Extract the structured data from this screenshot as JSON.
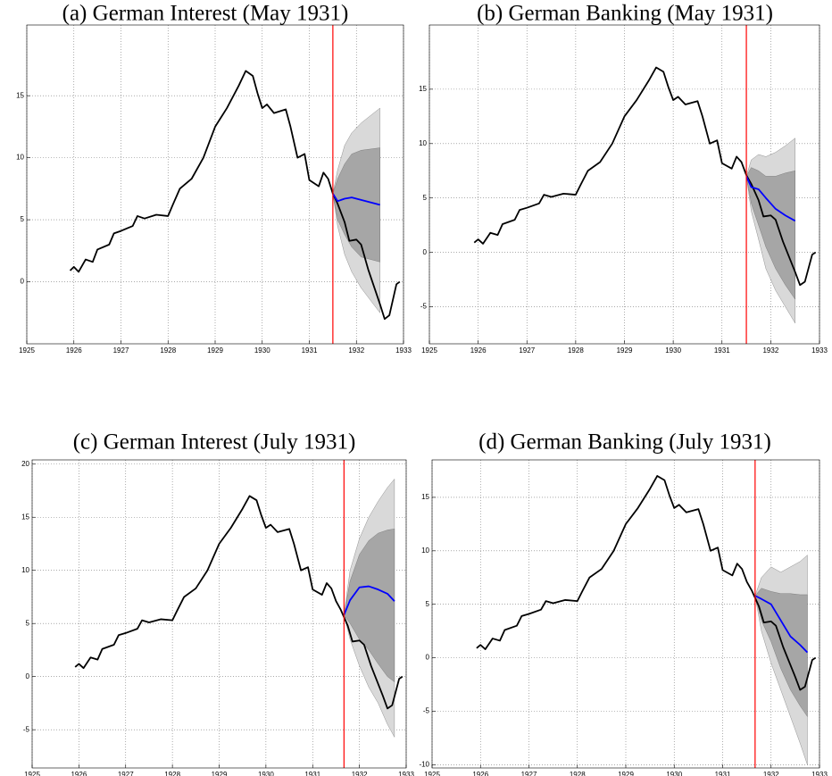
{
  "chart_data": [
    {
      "type": "line",
      "title": "(a)  German Interest (May 1931)",
      "xlim": [
        1925,
        1933
      ],
      "xticks": [
        1925,
        1926,
        1927,
        1928,
        1929,
        1930,
        1931,
        1932,
        1933
      ],
      "ylim": [
        -5,
        20.7
      ],
      "yticks": [
        0,
        5,
        10,
        15
      ],
      "grid": true,
      "vline": {
        "x": 1931.5,
        "color": "#ff0000"
      },
      "bands": [
        {
          "color": "#d9d9d9",
          "x": [
            1931.5,
            1931.6,
            1931.75,
            1931.9,
            1932.1,
            1932.3,
            1932.5
          ],
          "lower": [
            7.1,
            4.5,
            2.2,
            0.8,
            -0.5,
            -1.5,
            -2.5
          ],
          "upper": [
            7.1,
            9.0,
            11.0,
            12.0,
            12.8,
            13.4,
            14.0
          ]
        },
        {
          "color": "#a6a6a6",
          "x": [
            1931.5,
            1931.6,
            1931.75,
            1931.9,
            1932.1,
            1932.3,
            1932.5
          ],
          "lower": [
            7.1,
            5.0,
            3.8,
            2.8,
            2.0,
            1.8,
            1.6
          ],
          "upper": [
            7.1,
            8.3,
            9.5,
            10.3,
            10.6,
            10.7,
            10.8
          ]
        }
      ],
      "series": [
        {
          "color": "#000000",
          "x": [
            1925.92,
            1926.0,
            1926.1,
            1926.25,
            1926.4,
            1926.5,
            1926.75,
            1926.85,
            1927.0,
            1927.25,
            1927.35,
            1927.5,
            1927.75,
            1928.0,
            1928.1,
            1928.25,
            1928.5,
            1928.75,
            1929.0,
            1929.25,
            1929.5,
            1929.65,
            1929.8,
            1929.9,
            1930.0,
            1930.1,
            1930.25,
            1930.5,
            1930.6,
            1930.75,
            1930.9,
            1931.0,
            1931.2,
            1931.3,
            1931.4,
            1931.5,
            1931.6,
            1931.75,
            1931.85,
            1932.0,
            1932.1,
            1932.25,
            1932.5,
            1932.6,
            1932.7,
            1932.85,
            1932.92
          ],
          "values": [
            0.9,
            1.2,
            0.8,
            1.8,
            1.6,
            2.6,
            3.0,
            3.9,
            4.1,
            4.5,
            5.3,
            5.1,
            5.4,
            5.3,
            6.2,
            7.5,
            8.3,
            10.0,
            12.5,
            14.0,
            15.8,
            17.0,
            16.6,
            15.2,
            14.0,
            14.3,
            13.6,
            13.9,
            12.5,
            10.0,
            10.3,
            8.2,
            7.7,
            8.8,
            8.3,
            7.1,
            6.3,
            4.8,
            3.3,
            3.4,
            3.0,
            1.0,
            -1.8,
            -3.0,
            -2.7,
            -0.2,
            0.0
          ]
        },
        {
          "color": "#0000ff",
          "x": [
            1931.5,
            1931.6,
            1931.75,
            1931.9,
            1932.1,
            1932.3,
            1932.5
          ],
          "values": [
            7.1,
            6.5,
            6.7,
            6.8,
            6.6,
            6.4,
            6.2
          ]
        }
      ]
    },
    {
      "type": "line",
      "title": "(b)  German Banking (May 1931)",
      "xlim": [
        1925,
        1933
      ],
      "xticks": [
        1925,
        1926,
        1927,
        1928,
        1929,
        1930,
        1931,
        1932,
        1933
      ],
      "ylim": [
        -8.4,
        20.9
      ],
      "yticks": [
        -5,
        0,
        5,
        10,
        15
      ],
      "grid": true,
      "vline": {
        "x": 1931.5,
        "color": "#ff0000"
      },
      "bands": [
        {
          "color": "#d9d9d9",
          "x": [
            1931.5,
            1931.6,
            1931.75,
            1931.9,
            1932.1,
            1932.3,
            1932.5
          ],
          "lower": [
            7,
            3.8,
            1.2,
            -1.5,
            -3.5,
            -5,
            -6.5
          ],
          "upper": [
            7,
            8.5,
            9.0,
            8.8,
            9.2,
            9.8,
            10.5
          ]
        },
        {
          "color": "#a6a6a6",
          "x": [
            1931.5,
            1931.6,
            1931.75,
            1931.9,
            1932.1,
            1932.3,
            1932.5
          ],
          "lower": [
            7,
            4.5,
            2.5,
            0.5,
            -1.5,
            -3,
            -4.3
          ],
          "upper": [
            7,
            7.8,
            7.5,
            7.0,
            7.0,
            7.3,
            7.5
          ]
        }
      ],
      "series": [
        {
          "color": "#000000",
          "x": [
            1925.92,
            1926.0,
            1926.1,
            1926.25,
            1926.4,
            1926.5,
            1926.75,
            1926.85,
            1927.0,
            1927.25,
            1927.35,
            1927.5,
            1927.75,
            1928.0,
            1928.1,
            1928.25,
            1928.5,
            1928.75,
            1929.0,
            1929.25,
            1929.5,
            1929.65,
            1929.8,
            1929.9,
            1930.0,
            1930.1,
            1930.25,
            1930.5,
            1930.6,
            1930.75,
            1930.9,
            1931.0,
            1931.2,
            1931.3,
            1931.4,
            1931.5,
            1931.6,
            1931.75,
            1931.85,
            1932.0,
            1932.1,
            1932.25,
            1932.5,
            1932.6,
            1932.7,
            1932.85,
            1932.92
          ],
          "values": [
            0.9,
            1.2,
            0.8,
            1.8,
            1.6,
            2.6,
            3.0,
            3.9,
            4.1,
            4.5,
            5.3,
            5.1,
            5.4,
            5.3,
            6.2,
            7.5,
            8.3,
            10.0,
            12.5,
            14.0,
            15.8,
            17.0,
            16.6,
            15.2,
            14.0,
            14.3,
            13.6,
            13.9,
            12.5,
            10.0,
            10.3,
            8.2,
            7.7,
            8.8,
            8.3,
            7.1,
            6.3,
            4.8,
            3.3,
            3.4,
            3.0,
            1.0,
            -1.8,
            -3.0,
            -2.7,
            -0.2,
            0.0
          ]
        },
        {
          "color": "#0000ff",
          "x": [
            1931.5,
            1931.6,
            1931.75,
            1931.9,
            1932.1,
            1932.3,
            1932.5
          ],
          "values": [
            7.0,
            6.0,
            5.8,
            5.0,
            4.0,
            3.4,
            2.9
          ]
        }
      ]
    },
    {
      "type": "line",
      "title": "(c)  German Interest (July 1931)",
      "xlim": [
        1925,
        1933
      ],
      "xticks": [
        1925,
        1926,
        1927,
        1928,
        1929,
        1930,
        1931,
        1932,
        1933
      ],
      "ylim": [
        -8.6,
        20.4
      ],
      "yticks": [
        -5,
        0,
        5,
        10,
        15,
        20
      ],
      "grid": true,
      "vline": {
        "x": 1931.67,
        "color": "#ff0000"
      },
      "bands": [
        {
          "color": "#d9d9d9",
          "x": [
            1931.67,
            1931.8,
            1932.0,
            1932.2,
            1932.4,
            1932.6,
            1932.75
          ],
          "lower": [
            5.8,
            3.5,
            1.0,
            -1.0,
            -2.5,
            -4.5,
            -5.7
          ],
          "upper": [
            5.8,
            10,
            13,
            15,
            16.5,
            17.8,
            18.6
          ]
        },
        {
          "color": "#a6a6a6",
          "x": [
            1931.67,
            1931.8,
            1932.0,
            1932.2,
            1932.4,
            1932.6,
            1932.75
          ],
          "lower": [
            5.8,
            5.0,
            3.5,
            2.5,
            1.2,
            0.0,
            -0.5
          ],
          "upper": [
            5.8,
            9.0,
            11.5,
            12.8,
            13.5,
            13.8,
            13.9
          ]
        }
      ],
      "series": [
        {
          "color": "#000000",
          "x": [
            1925.92,
            1926.0,
            1926.1,
            1926.25,
            1926.4,
            1926.5,
            1926.75,
            1926.85,
            1927.0,
            1927.25,
            1927.35,
            1927.5,
            1927.75,
            1928.0,
            1928.1,
            1928.25,
            1928.5,
            1928.75,
            1929.0,
            1929.25,
            1929.5,
            1929.65,
            1929.8,
            1929.9,
            1930.0,
            1930.1,
            1930.25,
            1930.5,
            1930.6,
            1930.75,
            1930.9,
            1931.0,
            1931.2,
            1931.3,
            1931.4,
            1931.5,
            1931.6,
            1931.75,
            1931.85,
            1932.0,
            1932.1,
            1932.25,
            1932.5,
            1932.6,
            1932.7,
            1932.85,
            1932.92
          ],
          "values": [
            0.9,
            1.2,
            0.8,
            1.8,
            1.6,
            2.6,
            3.0,
            3.9,
            4.1,
            4.5,
            5.3,
            5.1,
            5.4,
            5.3,
            6.2,
            7.5,
            8.3,
            10.0,
            12.5,
            14.0,
            15.8,
            17.0,
            16.6,
            15.2,
            14.0,
            14.3,
            13.6,
            13.9,
            12.5,
            10.0,
            10.3,
            8.2,
            7.7,
            8.8,
            8.3,
            7.1,
            6.3,
            4.8,
            3.3,
            3.4,
            3.0,
            1.0,
            -1.8,
            -3.0,
            -2.7,
            -0.2,
            0.0
          ]
        },
        {
          "color": "#0000ff",
          "x": [
            1931.67,
            1931.8,
            1932.0,
            1932.2,
            1932.4,
            1932.6,
            1932.75
          ],
          "values": [
            5.8,
            7.2,
            8.4,
            8.5,
            8.2,
            7.8,
            7.1
          ]
        }
      ]
    },
    {
      "type": "line",
      "title": "(d)  German Banking (July 1931)",
      "xlim": [
        1925,
        1933
      ],
      "xticks": [
        1925,
        1926,
        1927,
        1928,
        1929,
        1930,
        1931,
        1932,
        1933
      ],
      "ylim": [
        -10.3,
        18.5
      ],
      "yticks": [
        -10,
        -5,
        0,
        5,
        10,
        15
      ],
      "grid": true,
      "vline": {
        "x": 1931.67,
        "color": "#ff0000"
      },
      "bands": [
        {
          "color": "#d9d9d9",
          "x": [
            1931.67,
            1931.8,
            1932.0,
            1932.2,
            1932.4,
            1932.6,
            1932.75
          ],
          "lower": [
            5.8,
            2.5,
            -0.5,
            -3,
            -5.5,
            -8,
            -10
          ],
          "upper": [
            5.8,
            7.5,
            8.5,
            8.0,
            8.5,
            9.0,
            9.6
          ]
        },
        {
          "color": "#a6a6a6",
          "x": [
            1931.67,
            1931.8,
            1932.0,
            1932.2,
            1932.4,
            1932.6,
            1932.75
          ],
          "lower": [
            5.8,
            3.5,
            1.5,
            -1.0,
            -3,
            -4.5,
            -5.5
          ],
          "upper": [
            5.8,
            6.5,
            6.2,
            6.0,
            6.0,
            5.9,
            5.9
          ]
        }
      ],
      "series": [
        {
          "color": "#000000",
          "x": [
            1925.92,
            1926.0,
            1926.1,
            1926.25,
            1926.4,
            1926.5,
            1926.75,
            1926.85,
            1927.0,
            1927.25,
            1927.35,
            1927.5,
            1927.75,
            1928.0,
            1928.1,
            1928.25,
            1928.5,
            1928.75,
            1929.0,
            1929.25,
            1929.5,
            1929.65,
            1929.8,
            1929.9,
            1930.0,
            1930.1,
            1930.25,
            1930.5,
            1930.6,
            1930.75,
            1930.9,
            1931.0,
            1931.2,
            1931.3,
            1931.4,
            1931.5,
            1931.6,
            1931.75,
            1931.85,
            1932.0,
            1932.1,
            1932.25,
            1932.5,
            1932.6,
            1932.7,
            1932.85,
            1932.92
          ],
          "values": [
            0.9,
            1.2,
            0.8,
            1.8,
            1.6,
            2.6,
            3.0,
            3.9,
            4.1,
            4.5,
            5.3,
            5.1,
            5.4,
            5.3,
            6.2,
            7.5,
            8.3,
            10.0,
            12.5,
            14.0,
            15.8,
            17.0,
            16.6,
            15.2,
            14.0,
            14.3,
            13.6,
            13.9,
            12.5,
            10.0,
            10.3,
            8.2,
            7.7,
            8.8,
            8.3,
            7.1,
            6.3,
            4.8,
            3.3,
            3.4,
            3.0,
            1.0,
            -1.8,
            -3.0,
            -2.7,
            -0.2,
            0.0
          ]
        },
        {
          "color": "#0000ff",
          "x": [
            1931.67,
            1931.8,
            1932.0,
            1932.2,
            1932.4,
            1932.6,
            1932.75
          ],
          "values": [
            5.8,
            5.5,
            5.0,
            3.5,
            2.0,
            1.2,
            0.5
          ]
        }
      ]
    }
  ]
}
